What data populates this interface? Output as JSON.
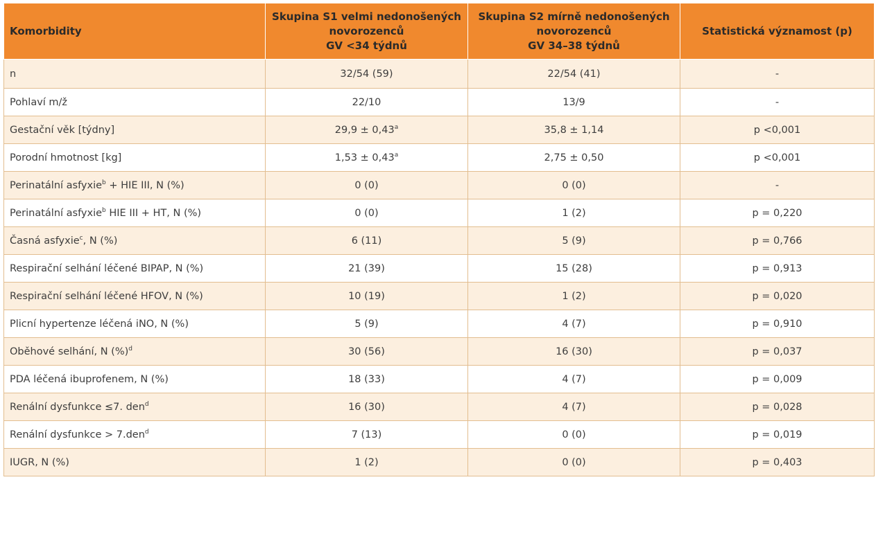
{
  "table": {
    "headers": [
      {
        "lines": [
          "Komorbidity"
        ]
      },
      {
        "lines": [
          "Skupina S1 velmi nedonošených",
          "novorozenců",
          "GV <34 týdnů"
        ]
      },
      {
        "lines": [
          "Skupina S2 mírně nedonošených",
          "novorozenců",
          "GV 34–38 týdnů"
        ]
      },
      {
        "lines": [
          "Statistická významost (p)"
        ]
      }
    ],
    "rows": [
      {
        "label": "n",
        "label_sup": "",
        "label_tail": "",
        "s1": "32/54 (59)",
        "s1_sup": "",
        "s2": "22/54 (41)",
        "p": "-"
      },
      {
        "label": "Pohlaví m/ž",
        "label_sup": "",
        "label_tail": "",
        "s1": "22/10",
        "s1_sup": "",
        "s2": "13/9",
        "p": "-"
      },
      {
        "label": "Gestační věk [týdny]",
        "label_sup": "",
        "label_tail": "",
        "s1": "29,9 ± 0,43",
        "s1_sup": "a",
        "s2": "35,8 ± 1,14",
        "p": "p <0,001"
      },
      {
        "label": "Porodní hmotnost [kg]",
        "label_sup": "",
        "label_tail": "",
        "s1": "1,53 ± 0,43",
        "s1_sup": "a",
        "s2": "2,75 ± 0,50",
        "p": "p <0,001"
      },
      {
        "label": "Perinatální asfyxie",
        "label_sup": "b",
        "label_tail": " + HIE III, N (%)",
        "s1": "0 (0)",
        "s1_sup": "",
        "s2": "0 (0)",
        "p": "-"
      },
      {
        "label": "Perinatální asfyxie",
        "label_sup": "b",
        "label_tail": " HIE III + HT, N (%)",
        "s1": "0 (0)",
        "s1_sup": "",
        "s2": "1 (2)",
        "p": "p = 0,220"
      },
      {
        "label": "Časná asfyxie",
        "label_sup": "c",
        "label_tail": ", N (%)",
        "s1": "6 (11)",
        "s1_sup": "",
        "s2": "5 (9)",
        "p": "p = 0,766"
      },
      {
        "label": "Respirační selhání léčené BIPAP, N (%)",
        "label_sup": "",
        "label_tail": "",
        "s1": "21 (39)",
        "s1_sup": "",
        "s2": "15 (28)",
        "p": "p = 0,913"
      },
      {
        "label": "Respirační selhání léčené HFOV, N (%)",
        "label_sup": "",
        "label_tail": "",
        "s1": "10 (19)",
        "s1_sup": "",
        "s2": "1 (2)",
        "p": "p = 0,020"
      },
      {
        "label": "Plicní hypertenze léčená iNO, N (%)",
        "label_sup": "",
        "label_tail": "",
        "s1": "5 (9)",
        "s1_sup": "",
        "s2": "4 (7)",
        "p": "p = 0,910"
      },
      {
        "label": "Oběhové selhání, N (%)",
        "label_sup": "d",
        "label_tail": "",
        "s1": "30 (56)",
        "s1_sup": "",
        "s2": "16 (30)",
        "p": "p = 0,037"
      },
      {
        "label": "PDA léčená ibuprofenem, N (%)",
        "label_sup": "",
        "label_tail": "",
        "s1": "18 (33)",
        "s1_sup": "",
        "s2": "4 (7)",
        "p": "p = 0,009"
      },
      {
        "label": "Renální dysfunkce ≤7. den",
        "label_sup": "d",
        "label_tail": "",
        "s1": "16 (30)",
        "s1_sup": "",
        "s2": "4 (7)",
        "p": "p = 0,028"
      },
      {
        "label": "Renální dysfunkce > 7.den",
        "label_sup": "d",
        "label_tail": "",
        "s1": "7 (13)",
        "s1_sup": "",
        "s2": "0 (0)",
        "p": "p = 0,019"
      },
      {
        "label": "IUGR, N (%)",
        "label_sup": "",
        "label_tail": "",
        "s1": "1 (2)",
        "s1_sup": "",
        "s2": "0 (0)",
        "p": "p = 0,403"
      }
    ],
    "colors": {
      "header_bg": "#f0892e",
      "odd_row_bg": "#fcefdf",
      "even_row_bg": "#ffffff",
      "border": "#e2bd8f"
    }
  }
}
